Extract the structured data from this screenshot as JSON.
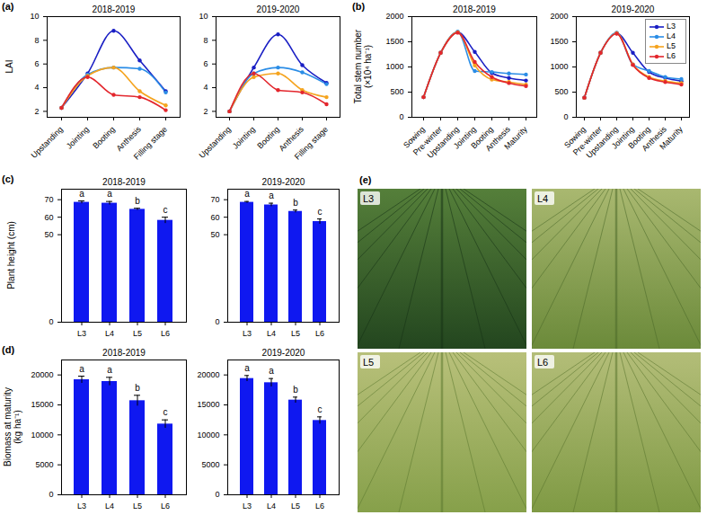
{
  "chart_data": [
    {
      "type": "line",
      "panel": "(a)",
      "title": "2018-2019",
      "ylabel": "LAI",
      "categories": [
        "Upstanding",
        "Jointing",
        "Booting",
        "Anthesis",
        "Filling stage"
      ],
      "series": [
        {
          "name": "L3",
          "color": "#1a1fc4",
          "values": [
            2.3,
            5.2,
            8.8,
            6.3,
            3.7
          ]
        },
        {
          "name": "L4",
          "color": "#2b8de6",
          "values": [
            2.3,
            5.1,
            5.7,
            5.6,
            3.6
          ]
        },
        {
          "name": "L5",
          "color": "#f5a41f",
          "values": [
            2.3,
            5.0,
            5.7,
            3.7,
            2.5
          ]
        },
        {
          "name": "L6",
          "color": "#e3262d",
          "values": [
            2.3,
            4.9,
            3.4,
            3.2,
            2.1
          ]
        }
      ],
      "ylim": [
        1.5,
        10
      ],
      "yticks": [
        2,
        4,
        6,
        8,
        10
      ],
      "marker": "circle"
    },
    {
      "type": "line",
      "title": "2019-2020",
      "categories": [
        "Upstanding",
        "Jointing",
        "Booting",
        "Anthesis",
        "Filling stage"
      ],
      "series": [
        {
          "name": "L3",
          "color": "#1a1fc4",
          "values": [
            2.0,
            5.7,
            8.5,
            5.9,
            4.4
          ]
        },
        {
          "name": "L4",
          "color": "#2b8de6",
          "values": [
            2.0,
            5.2,
            5.7,
            5.3,
            4.3
          ]
        },
        {
          "name": "L5",
          "color": "#f5a41f",
          "values": [
            2.0,
            4.9,
            5.2,
            3.8,
            3.2
          ]
        },
        {
          "name": "L6",
          "color": "#e3262d",
          "values": [
            2.0,
            5.2,
            3.8,
            3.6,
            2.6
          ]
        }
      ],
      "ylim": [
        1.5,
        10
      ],
      "yticks": [
        2,
        4,
        6,
        8,
        10
      ],
      "marker": "circle"
    },
    {
      "type": "line",
      "panel": "(b)",
      "title": "2018-2019",
      "ylabel": "Total stem number\n(×10⁴ ha⁻¹)",
      "categories": [
        "Sowing",
        "Pre-winter",
        "Upstanding",
        "Jointing",
        "Booting",
        "Anthesis",
        "Maturity"
      ],
      "series": [
        {
          "name": "L3",
          "color": "#1a1fc4",
          "values": [
            400,
            1280,
            1690,
            1300,
            880,
            780,
            730
          ]
        },
        {
          "name": "L4",
          "color": "#2b8de6",
          "values": [
            400,
            1280,
            1700,
            920,
            900,
            870,
            850
          ]
        },
        {
          "name": "L5",
          "color": "#f5a41f",
          "values": [
            400,
            1280,
            1690,
            1030,
            750,
            700,
            650
          ]
        },
        {
          "name": "L6",
          "color": "#e3262d",
          "values": [
            400,
            1280,
            1680,
            1100,
            800,
            680,
            620
          ]
        }
      ],
      "ylim": [
        0,
        2000
      ],
      "yticks": [
        0,
        500,
        1000,
        1500,
        2000
      ],
      "marker": "circle"
    },
    {
      "type": "line",
      "title": "2019-2020",
      "categories": [
        "Sowing",
        "Pre-winter",
        "Upstanding",
        "Jointing",
        "Booting",
        "Anthesis",
        "Maturity"
      ],
      "series": [
        {
          "name": "L3",
          "color": "#1a1fc4",
          "values": [
            390,
            1280,
            1670,
            1280,
            900,
            780,
            720
          ]
        },
        {
          "name": "L4",
          "color": "#2b8de6",
          "values": [
            390,
            1280,
            1680,
            1050,
            920,
            800,
            760
          ]
        },
        {
          "name": "L5",
          "color": "#f5a41f",
          "values": [
            390,
            1280,
            1670,
            1050,
            800,
            720,
            680
          ]
        },
        {
          "name": "L6",
          "color": "#e3262d",
          "values": [
            390,
            1280,
            1660,
            1040,
            780,
            700,
            650
          ]
        }
      ],
      "ylim": [
        0,
        2000
      ],
      "yticks": [
        0,
        500,
        1000,
        1500,
        2000
      ],
      "marker": "circle",
      "legend": "top-right"
    },
    {
      "type": "bar",
      "panel": "(c)",
      "title": "2018-2019",
      "ylabel": "Plant height (cm)",
      "categories": [
        "L3",
        "L4",
        "L5",
        "L6"
      ],
      "values": [
        68.5,
        68.0,
        64.5,
        58.2
      ],
      "errors": [
        0.8,
        1.0,
        0.6,
        1.8
      ],
      "annotations": [
        "a",
        "a",
        "b",
        "c"
      ],
      "color": "#0f18f0",
      "ylim": [
        0,
        76
      ],
      "yticks": [
        0,
        50,
        60,
        70
      ]
    },
    {
      "type": "bar",
      "title": "2019-2020",
      "categories": [
        "L3",
        "L4",
        "L5",
        "L6"
      ],
      "values": [
        68.5,
        67.0,
        63.3,
        57.5
      ],
      "errors": [
        0.5,
        1.0,
        0.8,
        1.5
      ],
      "annotations": [
        "a",
        "a",
        "b",
        "c"
      ],
      "color": "#0f18f0",
      "ylim": [
        0,
        76
      ],
      "yticks": [
        0,
        50,
        60,
        70
      ]
    },
    {
      "type": "bar",
      "panel": "(d)",
      "title": "2018-2019",
      "ylabel": "Biomass at maturity\n(kg ha⁻¹)",
      "categories": [
        "L3",
        "L4",
        "L5",
        "L6"
      ],
      "values": [
        19200,
        18900,
        15700,
        11800
      ],
      "errors": [
        600,
        700,
        900,
        700
      ],
      "annotations": [
        "a",
        "a",
        "b",
        "c"
      ],
      "color": "#0f18f0",
      "ylim": [
        0,
        22500
      ],
      "yticks": [
        0,
        5000,
        10000,
        15000,
        20000
      ]
    },
    {
      "type": "bar",
      "title": "2019-2020",
      "categories": [
        "L3",
        "L4",
        "L5",
        "L6"
      ],
      "values": [
        19400,
        18700,
        15800,
        12400
      ],
      "errors": [
        500,
        700,
        500,
        600
      ],
      "annotations": [
        "a",
        "a",
        "b",
        "c"
      ],
      "color": "#0f18f0",
      "ylim": [
        0,
        22500
      ],
      "yticks": [
        0,
        5000,
        10000,
        15000,
        20000
      ]
    }
  ],
  "photos": {
    "panel": "(e)",
    "labels": [
      "L3",
      "L4",
      "L5",
      "L6"
    ]
  }
}
